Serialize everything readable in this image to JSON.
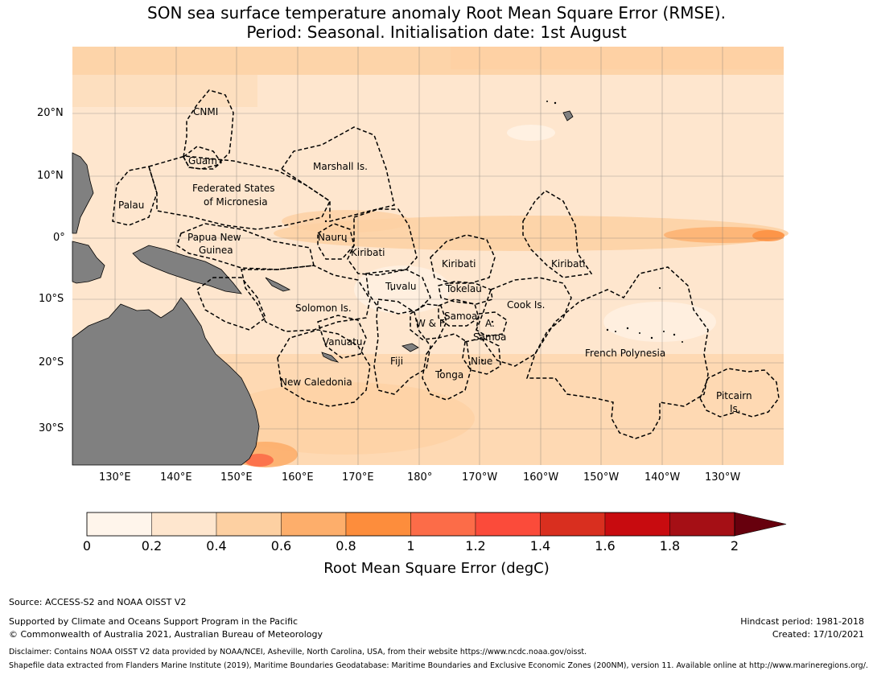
{
  "title_line1": "SON sea surface temperature anomaly Root Mean Square Error (RMSE).",
  "title_line2": "Period: Seasonal. Initialisation date: 1st August",
  "map": {
    "lat_ticks": [
      "20°N",
      "10°N",
      "0°",
      "10°S",
      "20°S",
      "30°S"
    ],
    "lon_ticks": [
      "130°E",
      "140°E",
      "150°E",
      "160°E",
      "170°E",
      "180°",
      "170°W",
      "160°W",
      "150°W",
      "140°W",
      "130°W"
    ],
    "land_color": "#808080",
    "region_labels": {
      "cnmi": "CNMI",
      "guam": "Guam",
      "marshall": "Marshall Is.",
      "fsm1": "Federated States",
      "fsm2": "of Micronesia",
      "palau": "Palau",
      "png1": "Papua New",
      "png2": "Guinea",
      "nauru": "Nauru",
      "kiribati_w": "Kiribati",
      "kiribati_c": "Kiribati",
      "kiribati_e": "Kiribati",
      "tuvalu": "Tuvalu",
      "tokelau": "Tokelau",
      "solomon": "Solomon Is.",
      "samoa": "Samoa",
      "amsamoa": "A.",
      "amsamoa2": "Samoa",
      "wf": "W & F.",
      "cook": "Cook Is.",
      "vanuatu": "Vanuatu",
      "fiji": "Fiji",
      "niue": "Niue",
      "tonga": "Tonga",
      "newcal": "New Caledonia",
      "frpoly": "French Polynesia",
      "pitcairn1": "Pitcairn",
      "pitcairn2": "Is."
    }
  },
  "colorbar": {
    "colors": [
      "#fff5eb",
      "#fee6ce",
      "#fdd0a2",
      "#fdae6b",
      "#fd8d3c",
      "#fc6c48",
      "#fb4b3a",
      "#d92f1f",
      "#c80b0f",
      "#a50f15",
      "#67000d"
    ],
    "ticks": [
      "0",
      "0.2",
      "0.4",
      "0.6",
      "0.8",
      "1",
      "1.2",
      "1.4",
      "1.6",
      "1.8",
      "2"
    ],
    "label": "Root Mean Square Error (degC)"
  },
  "footer": {
    "source": "Source: ACCESS-S2 and NOAA OISST V2",
    "support1": "Supported by Climate and Oceans Support Program in the Pacific",
    "support2": "© Commonwealth of Australia 2021, Australian Bureau of Meteorology",
    "hindcast": "Hindcast period: 1981-2018",
    "created": "Created: 17/10/2021",
    "disclaimer": "Disclaimer: Contains NOAA OISST V2 data provided by NOAA/NCEI, Asheville, North Carolina, USA, from their website https://www.ncdc.noaa.gov/oisst.",
    "shapefile": "Shapefile data extracted from Flanders Marine Institute (2019), Maritime Boundaries Geodatabase: Maritime Boundaries and Exclusive Economic Zones (200NM), version 11. Available online at http://www.marineregions.org/."
  }
}
